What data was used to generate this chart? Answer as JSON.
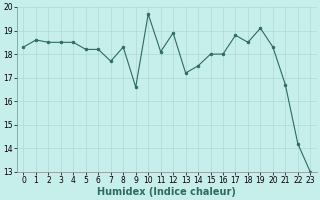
{
  "x": [
    0,
    1,
    2,
    3,
    4,
    5,
    6,
    7,
    8,
    9,
    10,
    11,
    12,
    13,
    14,
    15,
    16,
    17,
    18,
    19,
    20,
    21,
    22,
    23
  ],
  "y": [
    18.3,
    18.6,
    18.5,
    18.5,
    18.5,
    18.2,
    18.2,
    17.7,
    18.3,
    16.6,
    19.7,
    18.1,
    18.9,
    17.2,
    17.5,
    18.0,
    18.0,
    18.8,
    18.5,
    19.1,
    18.3,
    16.7,
    14.2,
    13.0
  ],
  "line_color": "#2e6b60",
  "marker_color": "#2e6b60",
  "bg_color": "#c6eeeb",
  "grid_color": "#b0d8d5",
  "xlabel": "Humidex (Indice chaleur)",
  "ylim_min": 13,
  "ylim_max": 20,
  "xlim_min": -0.5,
  "xlim_max": 23.5,
  "yticks": [
    13,
    14,
    15,
    16,
    17,
    18,
    19,
    20
  ],
  "xticks": [
    0,
    1,
    2,
    3,
    4,
    5,
    6,
    7,
    8,
    9,
    10,
    11,
    12,
    13,
    14,
    15,
    16,
    17,
    18,
    19,
    20,
    21,
    22,
    23
  ],
  "axis_fontsize": 6.5,
  "tick_fontsize": 5.5,
  "xlabel_fontsize": 7.0,
  "xlabel_fontweight": "bold"
}
